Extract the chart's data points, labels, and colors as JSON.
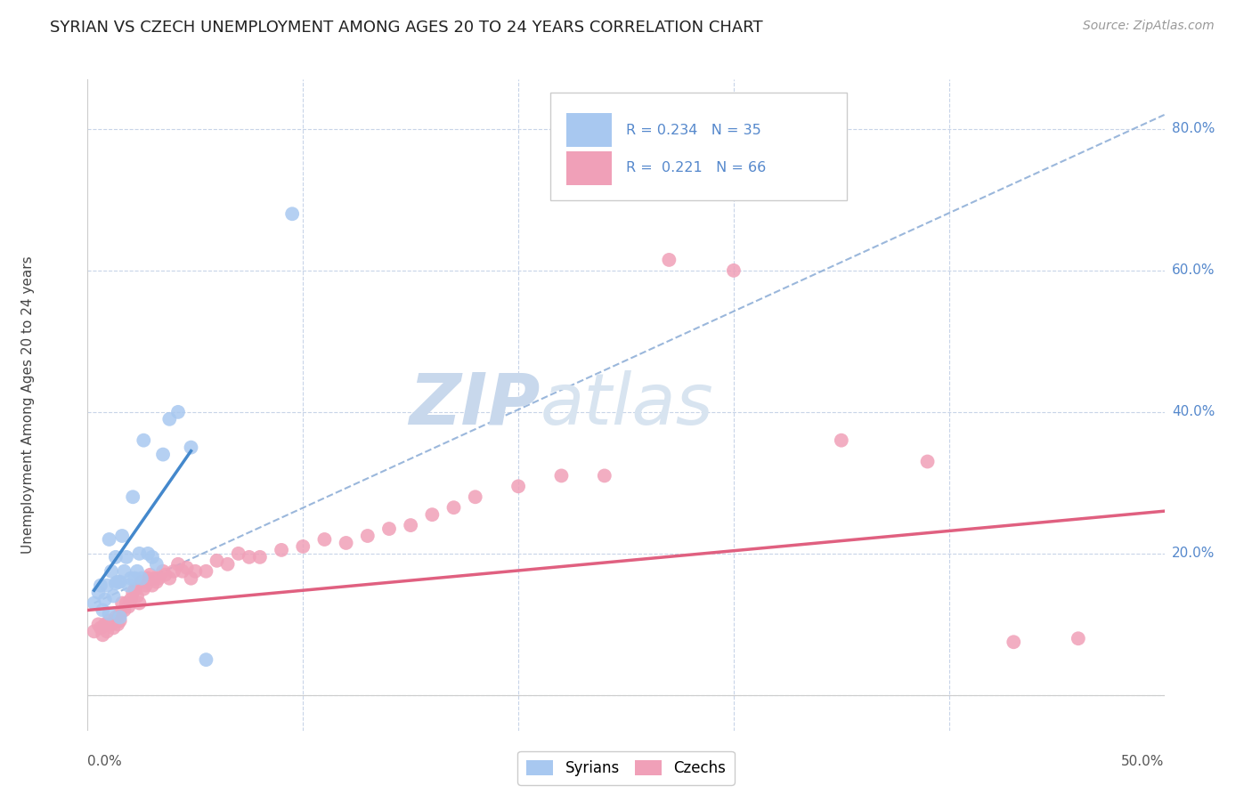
{
  "title": "SYRIAN VS CZECH UNEMPLOYMENT AMONG AGES 20 TO 24 YEARS CORRELATION CHART",
  "source": "Source: ZipAtlas.com",
  "ylabel": "Unemployment Among Ages 20 to 24 years",
  "background_color": "#ffffff",
  "grid_color": "#c8d4e8",
  "syrian_color": "#a8c8f0",
  "czech_color": "#f0a0b8",
  "syrian_line_color": "#4488cc",
  "czech_line_color": "#e06080",
  "dashed_line_color": "#90b0d8",
  "watermark_zip_color": "#b8c8e0",
  "watermark_atlas_color": "#c8d8e8",
  "y_label_color": "#5588cc",
  "R_syrian": 0.234,
  "N_syrian": 35,
  "R_czech": 0.221,
  "N_czech": 66,
  "legend_label_syrian": "Syrians",
  "legend_label_czech": "Czechs",
  "xlim": [
    0.0,
    0.5
  ],
  "ylim": [
    -0.05,
    0.87
  ],
  "ytick_vals": [
    0.0,
    0.2,
    0.4,
    0.6,
    0.8
  ],
  "ytick_labels": [
    "",
    "20.0%",
    "40.0%",
    "60.0%",
    "80.0%"
  ],
  "syrians_x": [
    0.003,
    0.005,
    0.006,
    0.007,
    0.008,
    0.009,
    0.01,
    0.01,
    0.011,
    0.012,
    0.013,
    0.013,
    0.014,
    0.015,
    0.015,
    0.016,
    0.017,
    0.018,
    0.019,
    0.02,
    0.021,
    0.022,
    0.023,
    0.024,
    0.025,
    0.026,
    0.028,
    0.03,
    0.032,
    0.035,
    0.038,
    0.042,
    0.048,
    0.055,
    0.095
  ],
  "syrians_y": [
    0.13,
    0.145,
    0.155,
    0.12,
    0.135,
    0.155,
    0.115,
    0.22,
    0.175,
    0.14,
    0.158,
    0.195,
    0.16,
    0.11,
    0.16,
    0.225,
    0.175,
    0.195,
    0.155,
    0.165,
    0.28,
    0.165,
    0.175,
    0.2,
    0.165,
    0.36,
    0.2,
    0.195,
    0.185,
    0.34,
    0.39,
    0.4,
    0.35,
    0.05,
    0.68
  ],
  "czechs_x": [
    0.003,
    0.005,
    0.006,
    0.007,
    0.008,
    0.009,
    0.01,
    0.01,
    0.011,
    0.012,
    0.013,
    0.014,
    0.015,
    0.015,
    0.016,
    0.017,
    0.018,
    0.019,
    0.02,
    0.021,
    0.022,
    0.023,
    0.024,
    0.025,
    0.026,
    0.027,
    0.028,
    0.029,
    0.03,
    0.031,
    0.032,
    0.033,
    0.035,
    0.036,
    0.038,
    0.04,
    0.042,
    0.044,
    0.046,
    0.048,
    0.05,
    0.055,
    0.06,
    0.065,
    0.07,
    0.075,
    0.08,
    0.09,
    0.1,
    0.11,
    0.12,
    0.13,
    0.14,
    0.15,
    0.16,
    0.17,
    0.18,
    0.2,
    0.22,
    0.24,
    0.27,
    0.3,
    0.35,
    0.39,
    0.43,
    0.46
  ],
  "czechs_y": [
    0.09,
    0.1,
    0.095,
    0.085,
    0.1,
    0.09,
    0.1,
    0.105,
    0.1,
    0.095,
    0.11,
    0.1,
    0.105,
    0.115,
    0.13,
    0.12,
    0.13,
    0.125,
    0.135,
    0.145,
    0.15,
    0.14,
    0.13,
    0.16,
    0.15,
    0.155,
    0.165,
    0.17,
    0.155,
    0.165,
    0.16,
    0.165,
    0.175,
    0.17,
    0.165,
    0.175,
    0.185,
    0.175,
    0.18,
    0.165,
    0.175,
    0.175,
    0.19,
    0.185,
    0.2,
    0.195,
    0.195,
    0.205,
    0.21,
    0.22,
    0.215,
    0.225,
    0.235,
    0.24,
    0.255,
    0.265,
    0.28,
    0.295,
    0.31,
    0.31,
    0.615,
    0.6,
    0.36,
    0.33,
    0.075,
    0.08
  ],
  "syrian_trend_x": [
    0.003,
    0.048
  ],
  "syrian_trend_y": [
    0.148,
    0.345
  ],
  "czech_trend_x": [
    0.0,
    0.5
  ],
  "czech_trend_y": [
    0.12,
    0.26
  ],
  "dashed_trend_x": [
    0.003,
    0.5
  ],
  "dashed_trend_y": [
    0.13,
    0.82
  ]
}
